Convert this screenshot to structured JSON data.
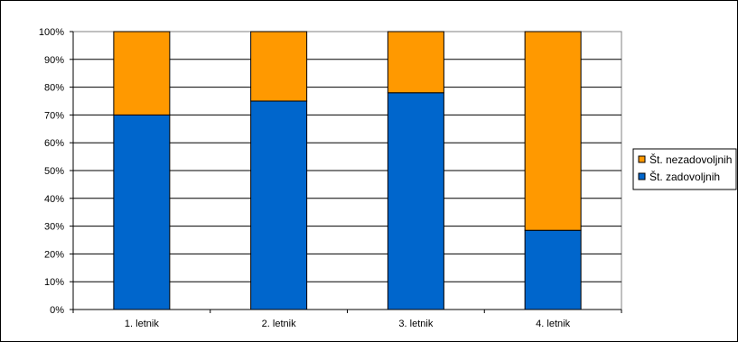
{
  "chart_data": {
    "type": "bar",
    "stacked": "percent",
    "categories": [
      "1. letnik",
      "2. letnik",
      "3. letnik",
      "4. letnik"
    ],
    "series": [
      {
        "name": "Št. zadovoljnih",
        "values": [
          70,
          75,
          78,
          28.5
        ],
        "color": "#0066cc"
      },
      {
        "name": "Št. nezadovoljnih",
        "values": [
          30,
          25,
          22,
          71.5
        ],
        "color": "#ff9900"
      }
    ],
    "y_ticks": [
      "0%",
      "10%",
      "20%",
      "30%",
      "40%",
      "50%",
      "60%",
      "70%",
      "80%",
      "90%",
      "100%"
    ],
    "ylim": [
      0,
      100
    ],
    "grid": true,
    "legend_position": "right",
    "legend_order": [
      1,
      0
    ]
  }
}
